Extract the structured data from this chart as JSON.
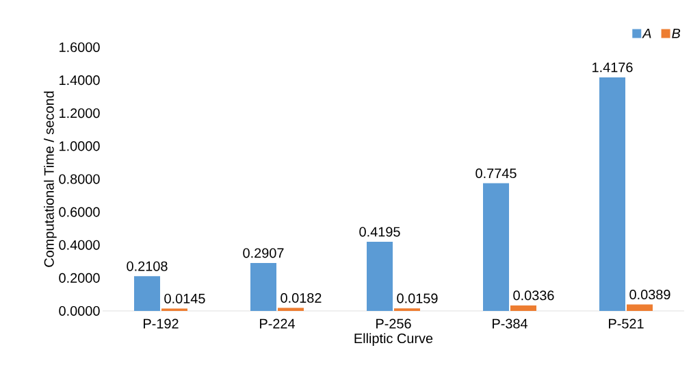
{
  "chart_data": {
    "type": "bar",
    "xlabel": "Elliptic Curve",
    "ylabel": "Computational Time / second",
    "categories": [
      "P-192",
      "P-224",
      "P-256",
      "P-384",
      "P-521"
    ],
    "series": [
      {
        "name": "A",
        "color": "#5b9bd5",
        "values": [
          0.2108,
          0.2907,
          0.4195,
          0.7745,
          1.4176
        ]
      },
      {
        "name": "B",
        "color": "#ed7d31",
        "values": [
          0.0145,
          0.0182,
          0.0159,
          0.0336,
          0.0389
        ]
      }
    ],
    "ylim": [
      0,
      1.6
    ],
    "yticks": [
      {
        "value": 0,
        "label": "0.0000"
      },
      {
        "value": 0.2,
        "label": "0.2000"
      },
      {
        "value": 0.4,
        "label": "0.4000"
      },
      {
        "value": 0.6,
        "label": "0.6000"
      },
      {
        "value": 0.8,
        "label": "0.8000"
      },
      {
        "value": 1.0,
        "label": "1.0000"
      },
      {
        "value": 1.2,
        "label": "1.2000"
      },
      {
        "value": 1.4,
        "label": "1.4000"
      },
      {
        "value": 1.6,
        "label": "1.6000"
      }
    ],
    "data_labels": true,
    "grid": false,
    "legend": "top right"
  }
}
